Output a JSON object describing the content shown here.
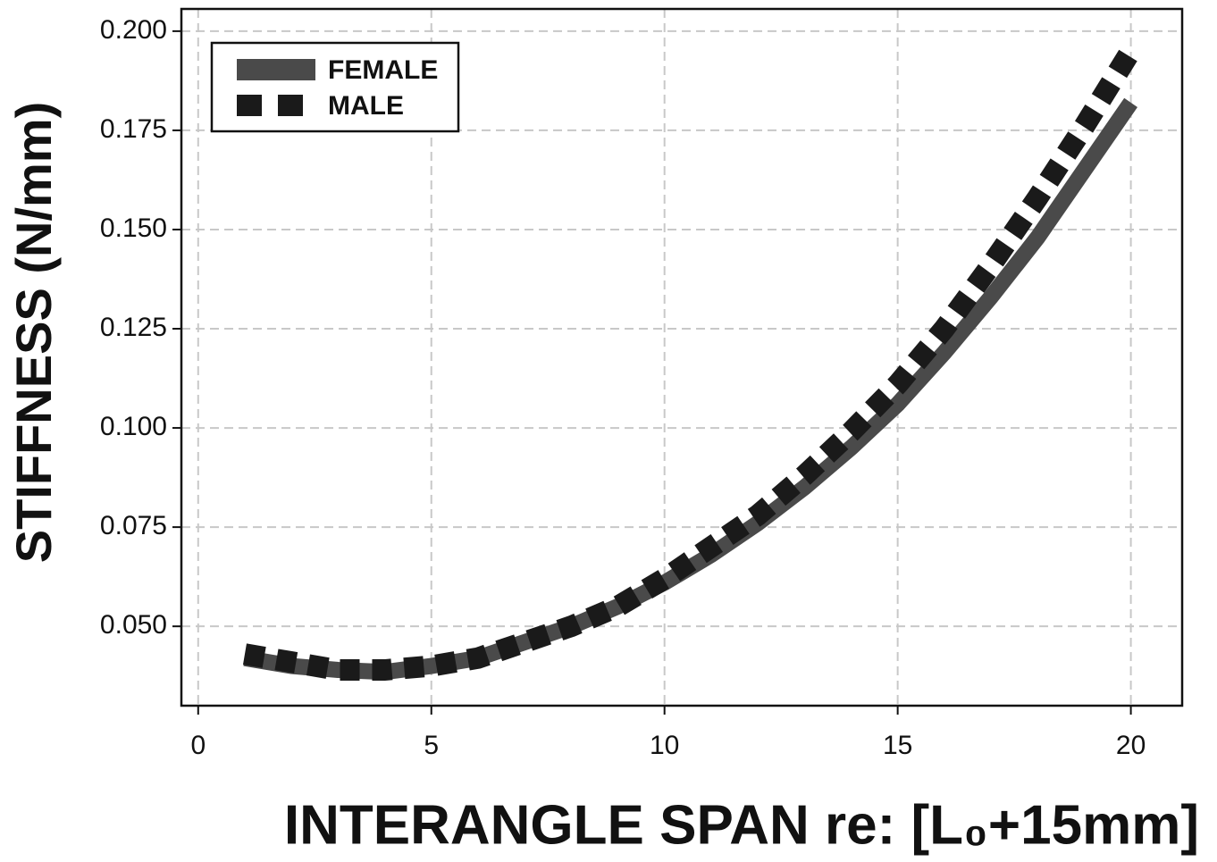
{
  "chart_data": {
    "type": "line",
    "xlabel": "INTERANGLE SPAN re: [L₀+15mm]",
    "ylabel": "STIFFNESS (N/mm)",
    "x": [
      1,
      2,
      3,
      4,
      5,
      6,
      7,
      8,
      9,
      10,
      11,
      12,
      13,
      14,
      15,
      16,
      17,
      18,
      19,
      20
    ],
    "series": [
      {
        "name": "FEMALE",
        "color": "#4a4a4a",
        "style": "solid",
        "values": [
          0.042,
          0.04,
          0.039,
          0.0385,
          0.04,
          0.042,
          0.046,
          0.05,
          0.055,
          0.061,
          0.068,
          0.076,
          0.085,
          0.095,
          0.106,
          0.119,
          0.133,
          0.148,
          0.165,
          0.182
        ]
      },
      {
        "name": "MALE",
        "color": "#1a1a1a",
        "style": "dashed",
        "values": [
          0.043,
          0.041,
          0.039,
          0.039,
          0.04,
          0.042,
          0.046,
          0.05,
          0.055,
          0.062,
          0.07,
          0.078,
          0.088,
          0.099,
          0.111,
          0.125,
          0.141,
          0.158,
          0.176,
          0.195
        ]
      }
    ],
    "xlim": [
      -0.36,
      21.1
    ],
    "ylim": [
      0.03,
      0.2056
    ],
    "xticks": [
      0,
      5,
      10,
      15,
      20
    ],
    "yticks": [
      {
        "value": 0.05,
        "label": "0.050"
      },
      {
        "value": 0.075,
        "label": "0.075"
      },
      {
        "value": 0.1,
        "label": "0.100"
      },
      {
        "value": 0.125,
        "label": "0.125"
      },
      {
        "value": 0.15,
        "label": "0.150"
      },
      {
        "value": 0.175,
        "label": "0.175"
      },
      {
        "value": 0.2,
        "label": "0.200"
      }
    ],
    "grid": true,
    "legend": "upper left"
  }
}
